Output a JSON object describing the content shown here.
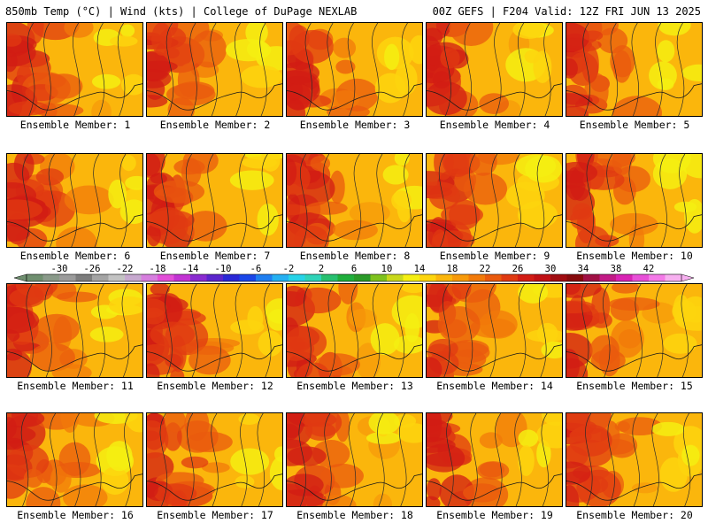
{
  "header": {
    "left": "850mb Temp (°C) | Wind (kts) | College of DuPage NEXLAB",
    "right": "00Z GEFS | F204 Valid: 12Z FRI JUN 13 2025"
  },
  "members": [
    {
      "label": "Ensemble Member: 1"
    },
    {
      "label": "Ensemble Member: 2"
    },
    {
      "label": "Ensemble Member: 3"
    },
    {
      "label": "Ensemble Member: 4"
    },
    {
      "label": "Ensemble Member: 5"
    },
    {
      "label": "Ensemble Member: 6"
    },
    {
      "label": "Ensemble Member: 7"
    },
    {
      "label": "Ensemble Member: 8"
    },
    {
      "label": "Ensemble Member: 9"
    },
    {
      "label": "Ensemble Member: 10"
    },
    {
      "label": "Ensemble Member: 11"
    },
    {
      "label": "Ensemble Member: 12"
    },
    {
      "label": "Ensemble Member: 13"
    },
    {
      "label": "Ensemble Member: 14"
    },
    {
      "label": "Ensemble Member: 15"
    },
    {
      "label": "Ensemble Member: 16"
    },
    {
      "label": "Ensemble Member: 17"
    },
    {
      "label": "Ensemble Member: 18"
    },
    {
      "label": "Ensemble Member: 19"
    },
    {
      "label": "Ensemble Member: 20"
    }
  ],
  "colorbar": {
    "labels": [
      "-30",
      "-26",
      "-22",
      "-18",
      "-14",
      "-10",
      "-6",
      "-2",
      "2",
      "6",
      "10",
      "14",
      "18",
      "22",
      "26",
      "30",
      "34",
      "38",
      "42"
    ],
    "colors": [
      "#6f8f6f",
      "#8a9a8a",
      "#9b9b9b",
      "#7d7d7d",
      "#a4a4a4",
      "#c3c3c3",
      "#c7a9cf",
      "#d67ede",
      "#e24ed8",
      "#c233d3",
      "#8a2bd0",
      "#5b25cc",
      "#2a28d6",
      "#1a46e8",
      "#1f7ef0",
      "#25b0f2",
      "#27d3e8",
      "#2fd3b8",
      "#27c070",
      "#1fae3c",
      "#2a9a28",
      "#7ec21e",
      "#c8d81c",
      "#f5ef12",
      "#fdd50e",
      "#fbb60c",
      "#f79a0a",
      "#f27a0a",
      "#ea5a0d",
      "#e03a12",
      "#d21c14",
      "#c01014",
      "#a00c10",
      "#860a0c",
      "#a01044",
      "#c21a86",
      "#d823b4",
      "#e850d8",
      "#f47ae8",
      "#f7b0f0"
    ]
  }
}
